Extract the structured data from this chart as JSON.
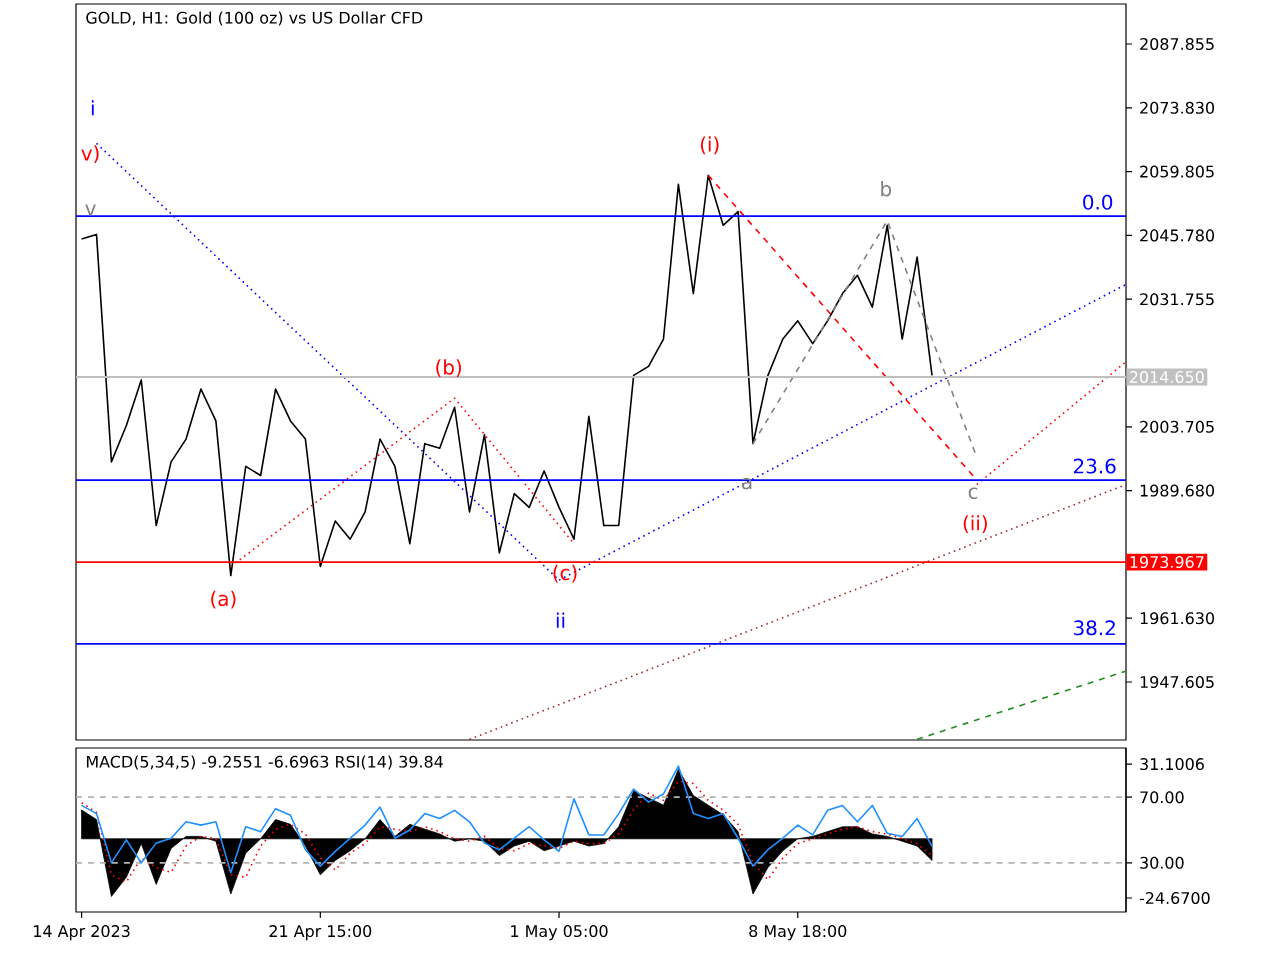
{
  "chart_data": [
    {
      "type": "line",
      "title": "GOLD, H1:  Gold (100 oz) vs US Dollar CFD",
      "ylim": [
        1934.85,
        2096.65
      ],
      "tick_labels": "y",
      "yticks": [
        {
          "value": 2087.855,
          "label": "2087.855"
        },
        {
          "value": 2073.83,
          "label": "2073.830"
        },
        {
          "value": 2059.805,
          "label": "2059.805"
        },
        {
          "value": 2045.78,
          "label": "2045.780"
        },
        {
          "value": 2031.755,
          "label": "2031.755"
        },
        {
          "value": 2003.705,
          "label": "2003.705"
        },
        {
          "value": 1989.68,
          "label": "1989.680"
        },
        {
          "value": 1961.63,
          "label": "1961.630"
        },
        {
          "value": 1947.605,
          "label": "1947.605"
        }
      ],
      "series": [
        {
          "color": "#000000",
          "values": [
            2045,
            2046,
            1996,
            2004,
            2014,
            1982,
            1996,
            2001,
            2012,
            2005,
            1971,
            1995,
            1993,
            2012,
            2005,
            2001,
            1973,
            1983,
            1979,
            1985,
            2001,
            1995,
            1978,
            2000,
            1999,
            2008,
            1985,
            2002,
            1976,
            1989,
            1986,
            1994,
            1986,
            1979,
            2006,
            1982,
            1982,
            2015,
            2017,
            2023,
            2057,
            2033,
            2059,
            2048,
            2051,
            2000,
            2015,
            2023,
            2027,
            2022,
            2027,
            2033,
            2037,
            2030,
            2048,
            2023,
            2041,
            2015,
            null,
            null,
            null,
            null,
            null,
            null,
            null,
            null,
            null,
            null,
            null,
            null,
            null
          ]
        },
        {
          "color": "#0000ff",
          "line_style": "dotted",
          "values": [
            null,
            2066,
            null,
            null,
            null,
            null,
            null,
            null,
            null,
            null,
            null,
            null,
            null,
            null,
            null,
            null,
            null,
            null,
            null,
            null,
            null,
            null,
            null,
            null,
            null,
            null,
            null,
            null,
            null,
            null,
            null,
            null,
            1970,
            null,
            null,
            null,
            null,
            null,
            null,
            null,
            null,
            null,
            null,
            null,
            null,
            null,
            null,
            null,
            null,
            null,
            null,
            null,
            null,
            null,
            null,
            null,
            null,
            null,
            null,
            null,
            null,
            null,
            null,
            null,
            null,
            null,
            null,
            null,
            null,
            null,
            null
          ]
        },
        {
          "color": "#0000ff",
          "line_style": "dotted",
          "values": [
            null,
            null,
            null,
            null,
            null,
            null,
            null,
            null,
            null,
            null,
            null,
            null,
            null,
            null,
            null,
            null,
            null,
            null,
            null,
            null,
            null,
            null,
            null,
            null,
            null,
            null,
            null,
            null,
            null,
            null,
            null,
            null,
            1970,
            null,
            null,
            null,
            null,
            null,
            null,
            null,
            null,
            null,
            null,
            null,
            null,
            null,
            null,
            null,
            null,
            null,
            null,
            null,
            null,
            null,
            null,
            null,
            null,
            null,
            null,
            null,
            null,
            null,
            null,
            null,
            null,
            null,
            null,
            null,
            null,
            null,
            2035
          ]
        },
        {
          "color": "#ff0000",
          "line_style": "dotted",
          "values": [
            null,
            null,
            null,
            null,
            null,
            null,
            null,
            null,
            null,
            null,
            1973,
            null,
            null,
            null,
            null,
            null,
            null,
            null,
            null,
            null,
            null,
            null,
            null,
            null,
            null,
            2010,
            null,
            null,
            null,
            null,
            null,
            null,
            null,
            1978,
            null,
            null,
            null,
            null,
            null,
            null,
            null,
            null,
            null,
            null,
            null,
            null,
            null,
            null,
            null,
            null,
            null,
            null,
            null,
            null,
            null,
            null,
            null,
            null,
            null,
            null,
            null,
            null,
            null,
            null,
            null,
            null,
            null,
            null,
            null,
            null,
            null
          ]
        },
        {
          "color": "#ff0000",
          "line_style": "dashed",
          "values": [
            null,
            null,
            null,
            null,
            null,
            null,
            null,
            null,
            null,
            null,
            null,
            null,
            null,
            null,
            null,
            null,
            null,
            null,
            null,
            null,
            null,
            null,
            null,
            null,
            null,
            null,
            null,
            null,
            null,
            null,
            null,
            null,
            null,
            null,
            null,
            null,
            null,
            null,
            null,
            null,
            null,
            null,
            2059,
            null,
            null,
            null,
            null,
            null,
            null,
            null,
            null,
            null,
            null,
            null,
            null,
            null,
            null,
            null,
            null,
            null,
            1992,
            null,
            null,
            null,
            null,
            null,
            null,
            null,
            null,
            null,
            null
          ]
        },
        {
          "color": "#ff0000",
          "line_style": "dotted",
          "values": [
            null,
            null,
            null,
            null,
            null,
            null,
            null,
            null,
            null,
            null,
            null,
            null,
            null,
            null,
            null,
            null,
            null,
            null,
            null,
            null,
            null,
            null,
            null,
            null,
            null,
            null,
            null,
            null,
            null,
            null,
            null,
            null,
            null,
            null,
            null,
            null,
            null,
            null,
            null,
            null,
            null,
            null,
            null,
            null,
            null,
            null,
            null,
            null,
            null,
            null,
            null,
            null,
            null,
            null,
            null,
            null,
            null,
            null,
            null,
            null,
            1991,
            null,
            null,
            null,
            null,
            null,
            null,
            null,
            null,
            null,
            2018
          ]
        },
        {
          "color": "#a52a2a",
          "line_style": "dotted",
          "values": [
            null,
            null,
            null,
            null,
            null,
            null,
            null,
            null,
            null,
            null,
            null,
            null,
            null,
            null,
            null,
            null,
            null,
            null,
            null,
            null,
            null,
            null,
            null,
            null,
            null,
            null,
            1935,
            null,
            null,
            null,
            null,
            null,
            null,
            null,
            null,
            null,
            null,
            null,
            null,
            null,
            null,
            null,
            null,
            null,
            null,
            null,
            null,
            null,
            null,
            null,
            null,
            null,
            null,
            null,
            null,
            null,
            null,
            null,
            null,
            null,
            null,
            null,
            null,
            null,
            null,
            null,
            null,
            null,
            null,
            null,
            1991
          ]
        },
        {
          "color": "#228b22",
          "line_style": "dashed",
          "values": [
            null,
            null,
            null,
            null,
            null,
            null,
            null,
            null,
            null,
            null,
            null,
            null,
            null,
            null,
            null,
            null,
            null,
            null,
            null,
            null,
            null,
            null,
            null,
            null,
            null,
            null,
            null,
            null,
            null,
            null,
            null,
            null,
            null,
            null,
            null,
            null,
            null,
            null,
            null,
            null,
            null,
            null,
            null,
            null,
            null,
            null,
            null,
            null,
            null,
            null,
            null,
            null,
            null,
            null,
            null,
            null,
            1935,
            null,
            null,
            null,
            null,
            null,
            null,
            null,
            null,
            null,
            null,
            null,
            null,
            null,
            1950
          ]
        },
        {
          "color": "#808080",
          "line_style": "dashed",
          "values": [
            null,
            null,
            null,
            null,
            null,
            null,
            null,
            null,
            null,
            null,
            null,
            null,
            null,
            null,
            null,
            null,
            null,
            null,
            null,
            null,
            null,
            null,
            null,
            null,
            null,
            null,
            null,
            null,
            null,
            null,
            null,
            null,
            null,
            null,
            null,
            null,
            null,
            null,
            null,
            null,
            null,
            null,
            null,
            null,
            null,
            2000,
            null,
            null,
            null,
            null,
            null,
            null,
            null,
            null,
            2049,
            null,
            null,
            null,
            null,
            null,
            1997,
            null,
            null,
            null,
            null,
            null,
            null,
            null,
            null,
            null,
            null
          ]
        }
      ],
      "ref_lines": [
        {
          "axis": "y",
          "value": 2050,
          "color": "#0000ff"
        },
        {
          "axis": "y",
          "value": 1992,
          "color": "#0000ff"
        },
        {
          "axis": "y",
          "value": 1956,
          "color": "#0000ff"
        },
        {
          "axis": "y",
          "value": 1973.967,
          "label": "1973.967",
          "color": "#ff0000"
        },
        {
          "axis": "y",
          "value": 2014.65,
          "label": "2014.650",
          "color": "#c0c0c0"
        }
      ],
      "annotations": [
        {
          "text": "(i)",
          "y": 2059
        },
        {
          "text": "(ii)",
          "y": 1992
        },
        {
          "text": "(a)",
          "y": 1971
        },
        {
          "text": "(b)",
          "y": 2010
        },
        {
          "text": "(c)",
          "y": 1978
        },
        {
          "text": "b",
          "y": 2049
        },
        {
          "text": "c",
          "y": 1997
        },
        {
          "text": "a",
          "y": 2000
        },
        "i",
        {
          "text": "ii",
          "y": 1970
        },
        "v)",
        "v",
        {
          "text": "0.0",
          "y": 2050
        },
        {
          "text": "23.6",
          "y": 1992
        },
        {
          "text": "38.2",
          "y": 1956
        }
      ]
    },
    {
      "type": "line",
      "title": "MACD(5,34,5) -9.2551 -6.6963 RSI(14) 39.84",
      "categories": [
        "14 Apr 2023",
        null,
        null,
        null,
        null,
        null,
        null,
        null,
        null,
        null,
        null,
        null,
        null,
        null,
        null,
        null,
        "21 Apr 15:00",
        null,
        null,
        null,
        null,
        null,
        null,
        null,
        null,
        null,
        null,
        null,
        null,
        null,
        null,
        null,
        "1 May 05:00",
        null,
        null,
        null,
        null,
        null,
        null,
        null,
        null,
        null,
        null,
        null,
        null,
        null,
        null,
        null,
        "8 May 18:00",
        null,
        null,
        null,
        null,
        null,
        null,
        null,
        null,
        null,
        null,
        null,
        null,
        null,
        null,
        null,
        null,
        null,
        null,
        null,
        null,
        null,
        null
      ],
      "ylim": [
        -30.5,
        37.8
      ],
      "y2lim": [
        0,
        100
      ],
      "yticks": [
        {
          "value": -24.67,
          "label": "-24.6700"
        },
        {
          "value": 31.1006,
          "label": "31.1006"
        }
      ],
      "y2ticks": [
        {
          "value": 30,
          "label": "30.00"
        },
        {
          "value": 70,
          "label": "70.00"
        }
      ],
      "series": [
        {
          "type": "area",
          "color": "#000000",
          "values": [
            12,
            8,
            -24,
            -16,
            -2,
            -19,
            -4,
            1,
            1,
            -1,
            -23,
            -6,
            0,
            8,
            6,
            -3,
            -15,
            -9,
            -5,
            0,
            8,
            1,
            6,
            4,
            2,
            -1,
            0,
            -1,
            -7,
            -3,
            -1,
            -5,
            -3,
            -1,
            -3,
            -2,
            5,
            20,
            17,
            14,
            29,
            18,
            14,
            10,
            3,
            -23,
            -12,
            -5,
            0,
            1,
            3,
            5,
            5,
            2,
            1,
            -1,
            -3,
            -9,
            null,
            null,
            null,
            null,
            null,
            null,
            null,
            null,
            null,
            null,
            null,
            null,
            null
          ]
        },
        {
          "color": "#ff0000",
          "line_style": "dotted",
          "values": [
            15,
            11,
            -15,
            -18,
            -8,
            -12,
            -14,
            -3,
            1,
            0,
            -15,
            -16,
            -3,
            4,
            6,
            2,
            -8,
            -13,
            -6,
            -2,
            5,
            4,
            3,
            5,
            3,
            0,
            -1,
            1,
            -4,
            -5,
            -2,
            -3,
            -4,
            -1,
            -2,
            -2,
            2,
            12,
            19,
            16,
            24,
            23,
            16,
            12,
            6,
            -10,
            -17,
            -8,
            -2,
            0,
            2,
            4,
            5,
            3,
            2,
            0,
            -2,
            -7,
            null,
            null,
            null,
            null,
            null,
            null,
            null,
            null,
            null,
            null,
            null,
            null,
            null
          ]
        },
        {
          "color": "#1e90ff",
          "axis": "y2",
          "values": [
            65,
            60,
            30,
            44,
            30,
            42,
            45,
            55,
            53,
            55,
            24,
            52,
            49,
            63,
            59,
            38,
            28,
            37,
            45,
            53,
            64,
            45,
            50,
            60,
            57,
            62,
            55,
            42,
            38,
            45,
            52,
            44,
            37,
            69,
            47,
            47,
            60,
            75,
            67,
            72,
            89,
            60,
            57,
            60,
            45,
            28,
            38,
            45,
            53,
            47,
            62,
            65,
            55,
            65,
            48,
            46,
            57,
            40,
            null,
            null,
            null,
            null,
            null,
            null,
            null,
            null,
            null,
            null,
            null,
            null,
            null
          ]
        }
      ],
      "ref_lines": [
        {
          "axis": "y2",
          "value": 70,
          "color": "#b4b4b4",
          "line_style": "dashed"
        },
        {
          "axis": "y2",
          "value": 30,
          "color": "#b4b4b4",
          "line_style": "dashed"
        }
      ]
    }
  ]
}
